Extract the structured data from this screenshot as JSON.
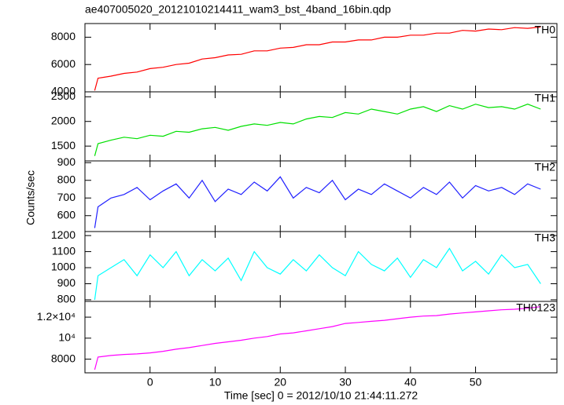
{
  "chart_data": {
    "type": "line",
    "title": "ae407005020_20121010214411_wam3_bst_4band_16bin.qdp",
    "xlabel": "Time [sec] 0 = 2012/10/10 21:44:11.272",
    "ylabel": "Counts/sec",
    "x": [
      -8.5,
      -8,
      -6,
      -4,
      -2,
      0,
      2,
      4,
      6,
      8,
      10,
      12,
      14,
      16,
      18,
      20,
      22,
      24,
      26,
      28,
      30,
      32,
      34,
      36,
      38,
      40,
      42,
      44,
      46,
      48,
      50,
      52,
      54,
      56,
      58,
      60
    ],
    "xlim": [
      -10,
      62.5
    ],
    "xticks": [
      0,
      10,
      20,
      30,
      40,
      50
    ],
    "panels": [
      {
        "series": [
          {
            "name": "TH0",
            "color": "#ff0000",
            "values": [
              4100,
              5000,
              5150,
              5350,
              5450,
              5700,
              5800,
              6000,
              6100,
              6400,
              6500,
              6700,
              6750,
              7000,
              7000,
              7200,
              7250,
              7450,
              7450,
              7650,
              7650,
              7800,
              7800,
              8000,
              8000,
              8150,
              8150,
              8300,
              8300,
              8500,
              8450,
              8600,
              8550,
              8700,
              8650,
              8750
            ]
          }
        ],
        "ylim": [
          4000,
          9000
        ],
        "yticks": [
          4000,
          6000,
          8000
        ]
      },
      {
        "series": [
          {
            "name": "TH1",
            "color": "#00e000",
            "values": [
              1300,
              1550,
              1620,
              1680,
              1650,
              1720,
              1700,
              1800,
              1780,
              1850,
              1880,
              1820,
              1900,
              1950,
              1920,
              1980,
              1950,
              2050,
              2100,
              2080,
              2180,
              2150,
              2250,
              2200,
              2150,
              2250,
              2300,
              2200,
              2320,
              2250,
              2350,
              2280,
              2300,
              2250,
              2350,
              2250
            ]
          }
        ],
        "ylim": [
          1200,
          2600
        ],
        "yticks": [
          1500,
          2000,
          2500
        ]
      },
      {
        "series": [
          {
            "name": "TH2",
            "color": "#2020ff",
            "values": [
              530,
              650,
              700,
              720,
              760,
              690,
              740,
              780,
              700,
              800,
              680,
              750,
              720,
              790,
              740,
              820,
              700,
              760,
              730,
              800,
              690,
              750,
              720,
              780,
              740,
              700,
              760,
              720,
              790,
              700,
              770,
              740,
              760,
              720,
              780,
              750
            ]
          }
        ],
        "ylim": [
          510,
          910
        ],
        "yticks": [
          600,
          700,
          800,
          900
        ]
      },
      {
        "series": [
          {
            "name": "TH3",
            "color": "#00ffff",
            "values": [
              800,
              950,
              1000,
              1050,
              950,
              1080,
              1000,
              1100,
              950,
              1050,
              980,
              1060,
              920,
              1100,
              1000,
              960,
              1050,
              980,
              1080,
              1000,
              950,
              1100,
              1020,
              980,
              1060,
              940,
              1050,
              1000,
              1120,
              980,
              1040,
              960,
              1080,
              1000,
              1020,
              900
            ]
          }
        ],
        "ylim": [
          790,
          1225
        ],
        "yticks": [
          800,
          900,
          1000,
          1100,
          1200
        ]
      },
      {
        "series": [
          {
            "name": "TH0123",
            "color": "#ff00ff",
            "values": [
              7000,
              8200,
              8350,
              8450,
              8500,
              8600,
              8750,
              8950,
              9100,
              9300,
              9500,
              9650,
              9800,
              10000,
              10150,
              10400,
              10500,
              10700,
              10900,
              11100,
              11400,
              11500,
              11600,
              11700,
              11850,
              12000,
              12100,
              12150,
              12300,
              12400,
              12500,
              12600,
              12700,
              12750,
              12850,
              13000
            ]
          }
        ],
        "ylim": [
          6700,
          13500
        ],
        "yticks": [
          8000,
          {
            "value": 10000,
            "label": "10⁴"
          },
          {
            "value": 12000,
            "label": "1.2×10⁴"
          }
        ]
      }
    ]
  }
}
